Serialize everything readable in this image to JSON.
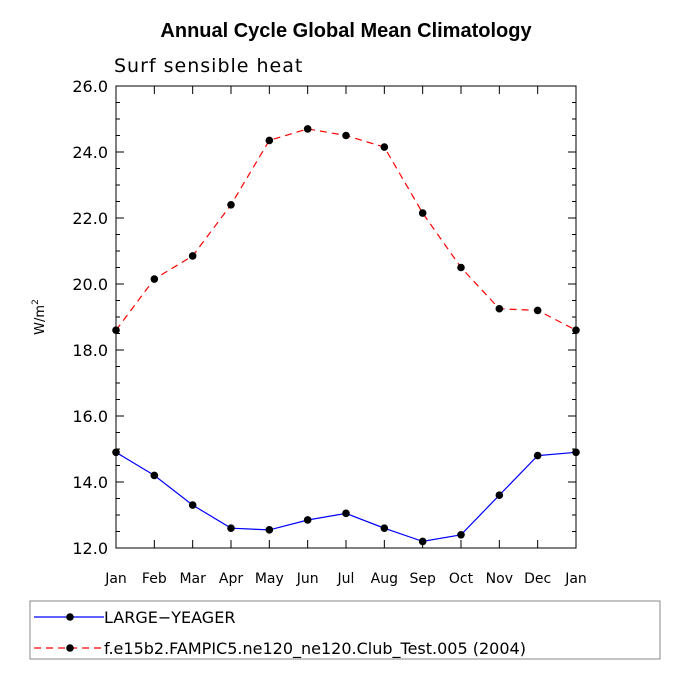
{
  "chart_data": {
    "type": "line",
    "title": "Annual Cycle Global Mean Climatology",
    "subtitle": "Surf sensible heat",
    "xlabel": "",
    "ylabel": "W/m",
    "ylabel_sup": "2",
    "ylim": [
      12.0,
      26.0
    ],
    "yticks": [
      "12.0",
      "14.0",
      "16.0",
      "18.0",
      "20.0",
      "22.0",
      "24.0",
      "26.0"
    ],
    "categories": [
      "Jan",
      "Feb",
      "Mar",
      "Apr",
      "May",
      "Jun",
      "Jul",
      "Aug",
      "Sep",
      "Oct",
      "Nov",
      "Dec",
      "Jan"
    ],
    "series": [
      {
        "name": "LARGE−YEAGER",
        "color": "#0000ff",
        "dash": "solid",
        "values": [
          14.9,
          14.2,
          13.3,
          12.6,
          12.55,
          12.85,
          13.05,
          12.6,
          12.2,
          12.4,
          13.6,
          14.8,
          14.9
        ]
      },
      {
        "name": "f.e15b2.FAMPIC5.ne120_ne120.Club_Test.005 (2004)",
        "color": "#ff0000",
        "dash": "dashed",
        "values": [
          18.6,
          20.15,
          20.85,
          22.4,
          24.35,
          24.7,
          24.5,
          24.15,
          22.15,
          20.5,
          19.25,
          19.2,
          18.6
        ]
      }
    ]
  }
}
